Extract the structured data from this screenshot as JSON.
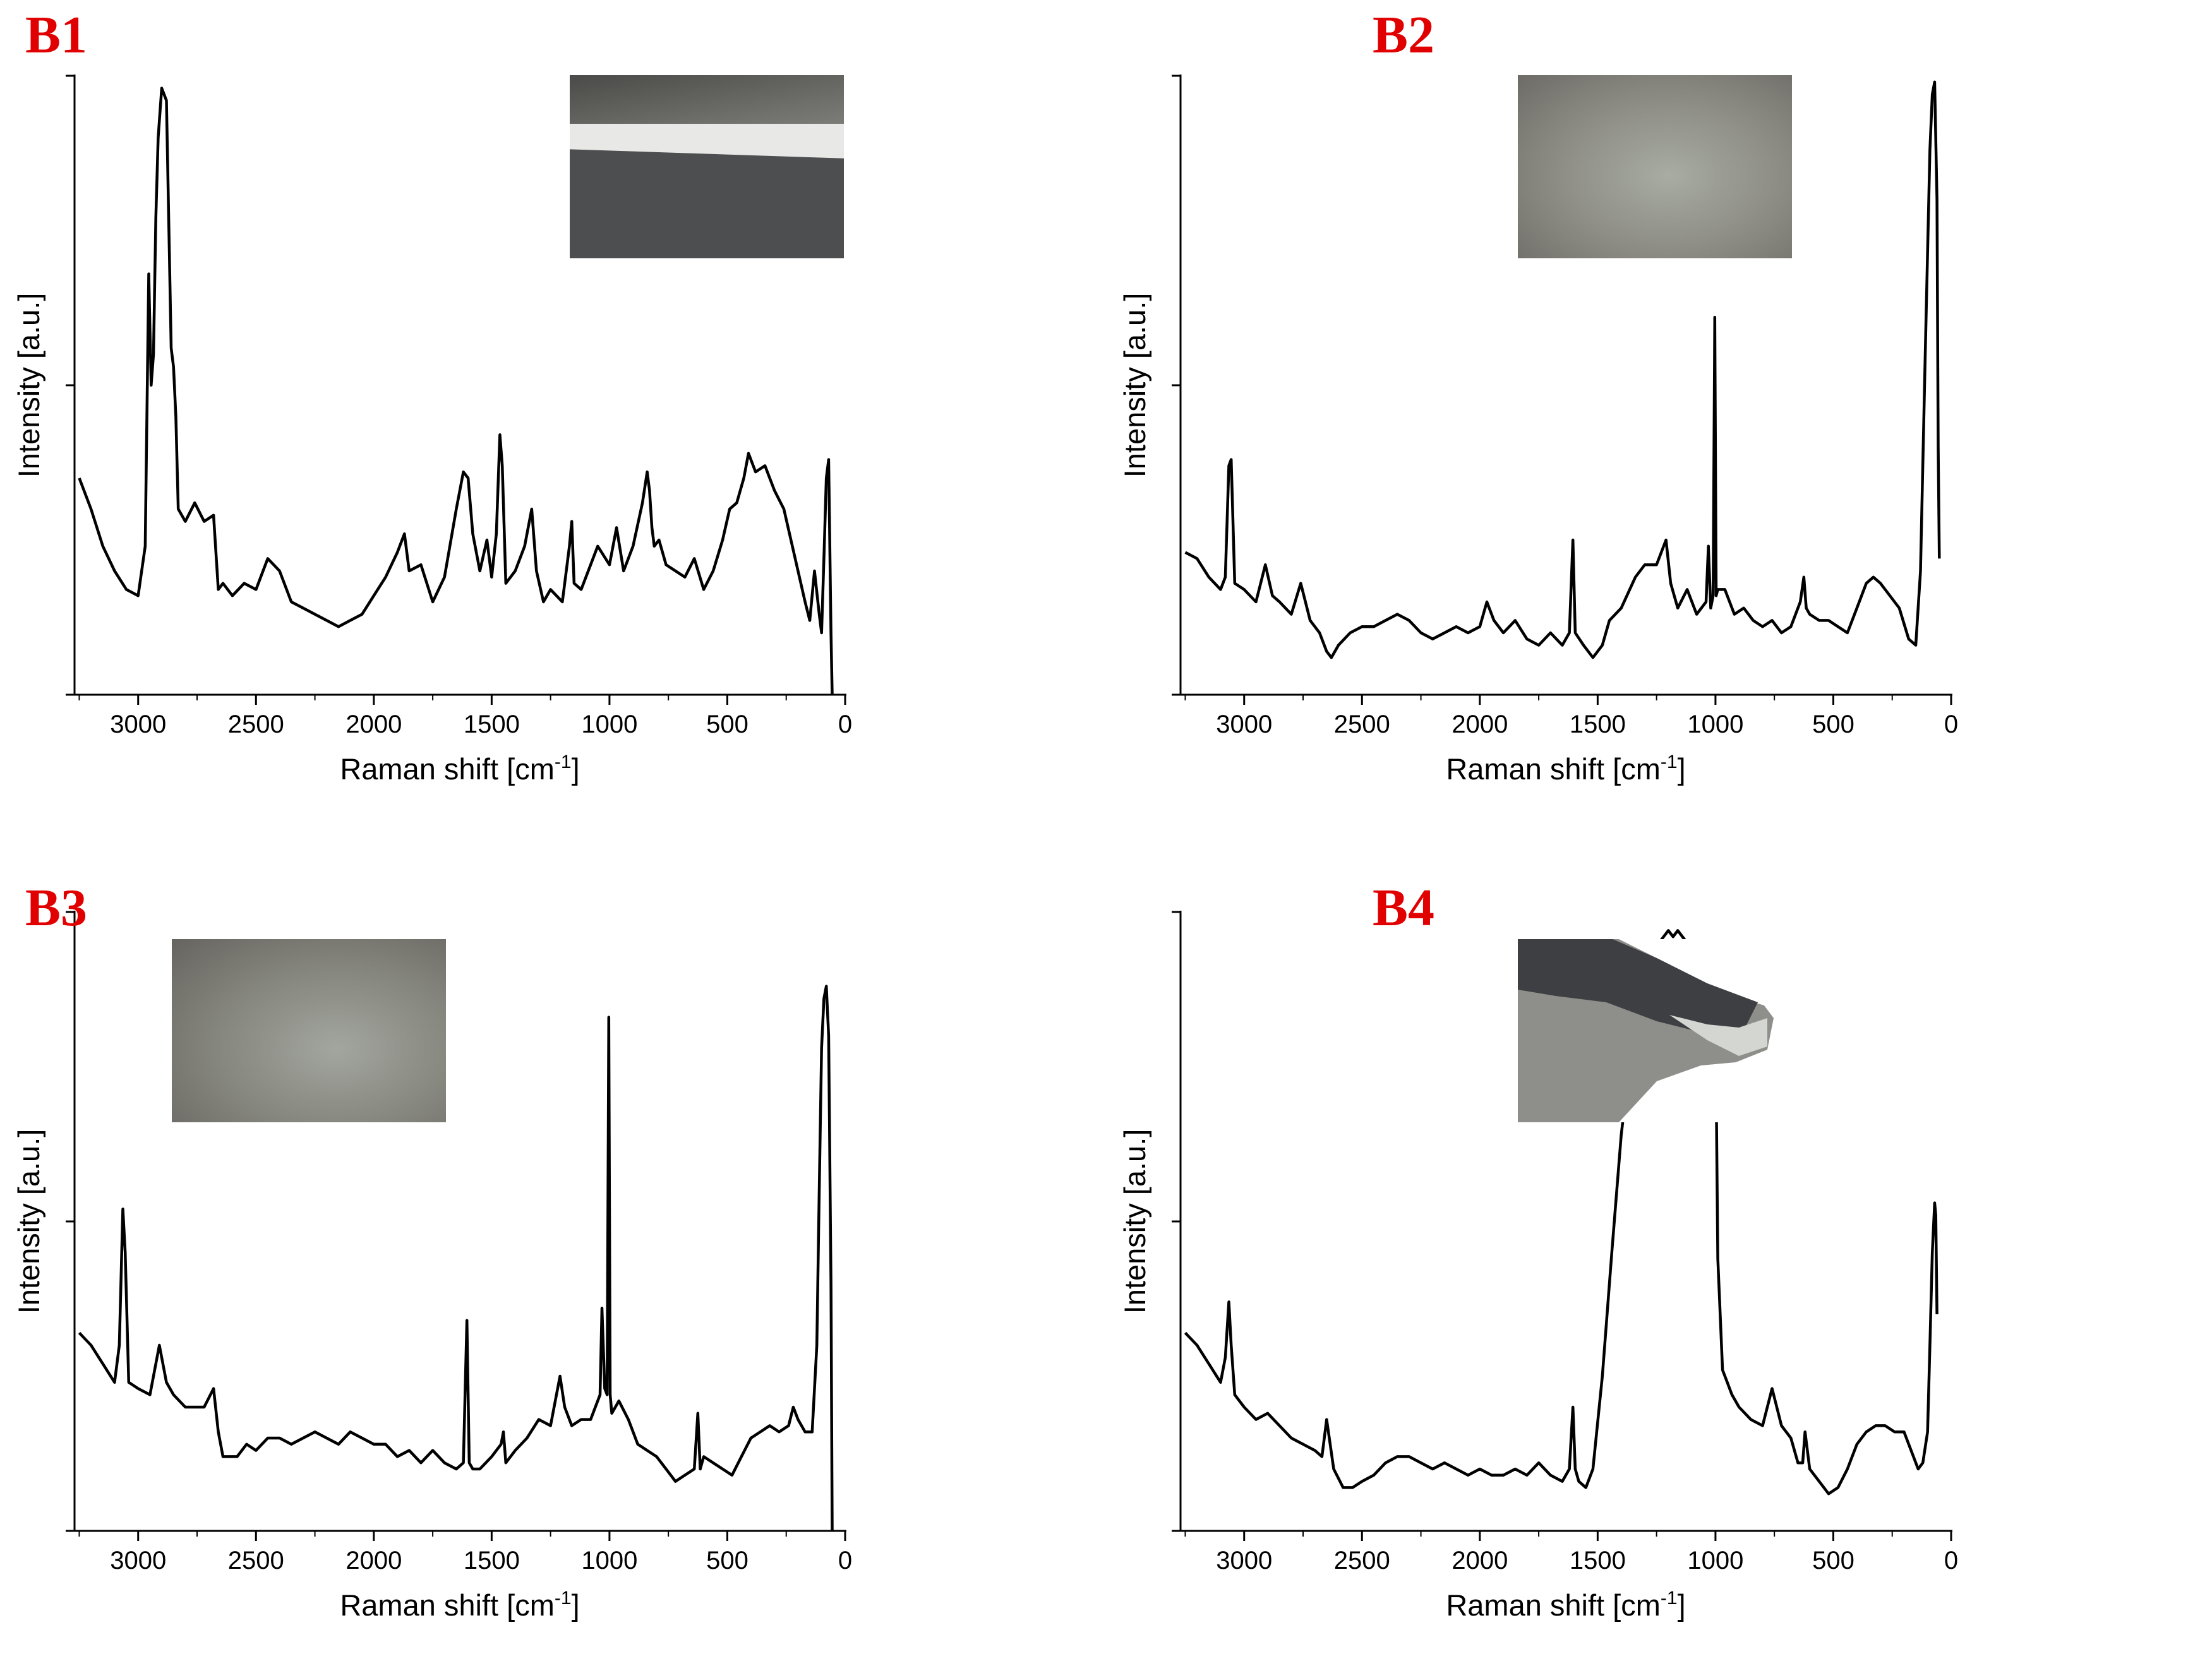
{
  "colors": {
    "label": "#e00000",
    "line": "#000000"
  },
  "chart_data": [
    {
      "id": "b1",
      "panel_label": "B1",
      "type": "line",
      "xlabel": "Raman shift [cm-1]",
      "xlabel_main": "Raman shift [cm",
      "xlabel_sup": "-1",
      "xlabel_end": "]",
      "ylabel": "Intensity [a.u.]",
      "xlim": [
        3270,
        0
      ],
      "ylim": [
        0,
        100
      ],
      "x_reversed": true,
      "x_ticks": [
        3000,
        2500,
        2000,
        1500,
        1000,
        500,
        0
      ],
      "x_tick_labels": [
        "3000",
        "2500",
        "2000",
        "1500",
        "1000",
        "500",
        "0"
      ],
      "y_ticks": [
        0,
        50,
        100
      ],
      "inset": "photo",
      "series": [
        {
          "x": [
            3250,
            3200,
            3150,
            3100,
            3050,
            3000,
            2970,
            2955,
            2945,
            2935,
            2925,
            2915,
            2900,
            2880,
            2860,
            2850,
            2840,
            2830,
            2800,
            2760,
            2720,
            2680,
            2660,
            2640,
            2600,
            2550,
            2500,
            2450,
            2400,
            2350,
            2300,
            2250,
            2200,
            2150,
            2100,
            2050,
            2000,
            1950,
            1900,
            1870,
            1850,
            1800,
            1750,
            1700,
            1650,
            1620,
            1600,
            1580,
            1550,
            1520,
            1500,
            1480,
            1465,
            1455,
            1440,
            1400,
            1360,
            1330,
            1310,
            1280,
            1250,
            1200,
            1170,
            1160,
            1150,
            1120,
            1080,
            1050,
            1000,
            970,
            940,
            900,
            860,
            840,
            830,
            820,
            810,
            790,
            760,
            720,
            680,
            640,
            600,
            560,
            520,
            490,
            460,
            430,
            410,
            380,
            340,
            300,
            260,
            230,
            200,
            170,
            150,
            130,
            110,
            100,
            90,
            80,
            70,
            60,
            55
          ],
          "y": [
            35,
            30,
            24,
            20,
            17,
            16,
            24,
            68,
            50,
            55,
            77,
            90,
            98,
            96,
            56,
            53,
            45,
            30,
            28,
            31,
            28,
            29,
            17,
            18,
            16,
            18,
            17,
            22,
            20,
            15,
            14,
            13,
            12,
            11,
            12,
            13,
            16,
            19,
            23,
            26,
            20,
            21,
            15,
            19,
            30,
            36,
            35,
            26,
            20,
            25,
            19,
            26,
            42,
            37,
            18,
            20,
            24,
            30,
            20,
            15,
            17,
            15,
            24,
            28,
            18,
            17,
            21,
            24,
            21,
            27,
            20,
            24,
            31,
            36,
            33,
            27,
            24,
            25,
            21,
            20,
            19,
            22,
            17,
            20,
            25,
            30,
            31,
            35,
            39,
            36,
            37,
            33,
            30,
            25,
            20,
            15,
            12,
            20,
            13,
            10,
            22,
            35,
            38,
            10,
            0
          ]
        }
      ]
    },
    {
      "id": "b2",
      "panel_label": "B2",
      "type": "line",
      "xlabel": "Raman shift [cm-1]",
      "xlabel_main": "Raman shift [cm",
      "xlabel_sup": "-1",
      "xlabel_end": "]",
      "ylabel": "Intensity [a.u.]",
      "xlim": [
        3270,
        0
      ],
      "ylim": [
        0,
        100
      ],
      "x_reversed": true,
      "x_ticks": [
        3000,
        2500,
        2000,
        1500,
        1000,
        500,
        0
      ],
      "x_tick_labels": [
        "3000",
        "2500",
        "2000",
        "1500",
        "1000",
        "500",
        "0"
      ],
      "y_ticks": [
        0,
        50,
        100
      ],
      "inset": "photo",
      "series": [
        {
          "x": [
            3250,
            3200,
            3150,
            3100,
            3080,
            3065,
            3055,
            3040,
            3000,
            2950,
            2910,
            2880,
            2850,
            2800,
            2760,
            2720,
            2680,
            2650,
            2630,
            2600,
            2550,
            2500,
            2450,
            2400,
            2350,
            2300,
            2250,
            2200,
            2150,
            2100,
            2050,
            2000,
            1970,
            1940,
            1900,
            1850,
            1800,
            1750,
            1700,
            1650,
            1620,
            1605,
            1595,
            1560,
            1520,
            1480,
            1450,
            1400,
            1340,
            1300,
            1250,
            1210,
            1190,
            1160,
            1120,
            1080,
            1040,
            1030,
            1020,
            1010,
            1003,
            997,
            990,
            960,
            920,
            880,
            840,
            800,
            760,
            720,
            680,
            640,
            625,
            615,
            600,
            560,
            520,
            480,
            440,
            400,
            360,
            330,
            300,
            260,
            220,
            180,
            150,
            130,
            110,
            90,
            80,
            70,
            60,
            55,
            50
          ],
          "y": [
            23,
            22,
            19,
            17,
            19,
            37,
            38,
            18,
            17,
            15,
            21,
            16,
            15,
            13,
            18,
            12,
            10,
            7,
            6,
            8,
            10,
            11,
            11,
            12,
            13,
            12,
            10,
            9,
            10,
            11,
            10,
            11,
            15,
            12,
            10,
            12,
            9,
            8,
            10,
            8,
            10,
            25,
            10,
            8,
            6,
            8,
            12,
            14,
            19,
            21,
            21,
            25,
            18,
            14,
            17,
            13,
            15,
            24,
            14,
            16,
            61,
            16,
            17,
            17,
            13,
            14,
            12,
            11,
            12,
            10,
            11,
            15,
            19,
            14,
            13,
            12,
            12,
            11,
            10,
            14,
            18,
            19,
            18,
            16,
            14,
            9,
            8,
            20,
            55,
            88,
            97,
            99,
            80,
            40,
            22
          ]
        }
      ]
    },
    {
      "id": "b3",
      "panel_label": "B3",
      "type": "line",
      "xlabel": "Raman shift [cm-1]",
      "xlabel_main": "Raman shift [cm",
      "xlabel_sup": "-1",
      "xlabel_end": "]",
      "ylabel": "Intensity [a.u.]",
      "xlim": [
        3270,
        0
      ],
      "ylim": [
        0,
        100
      ],
      "x_reversed": true,
      "x_ticks": [
        3000,
        2500,
        2000,
        1500,
        1000,
        500,
        0
      ],
      "x_tick_labels": [
        "3000",
        "2500",
        "2000",
        "1500",
        "1000",
        "500",
        "0"
      ],
      "y_ticks": [
        0,
        50,
        100
      ],
      "inset": "photo",
      "series": [
        {
          "x": [
            3250,
            3200,
            3150,
            3100,
            3080,
            3065,
            3055,
            3040,
            3000,
            2950,
            2910,
            2880,
            2850,
            2800,
            2760,
            2720,
            2680,
            2660,
            2640,
            2620,
            2580,
            2540,
            2500,
            2450,
            2400,
            2350,
            2300,
            2250,
            2200,
            2150,
            2100,
            2050,
            2000,
            1950,
            1900,
            1850,
            1800,
            1750,
            1700,
            1650,
            1620,
            1605,
            1595,
            1580,
            1550,
            1500,
            1460,
            1450,
            1440,
            1400,
            1350,
            1300,
            1250,
            1210,
            1190,
            1160,
            1120,
            1080,
            1040,
            1032,
            1020,
            1010,
            1003,
            997,
            990,
            960,
            920,
            880,
            840,
            800,
            760,
            720,
            680,
            640,
            625,
            615,
            600,
            560,
            520,
            480,
            440,
            400,
            360,
            320,
            280,
            240,
            220,
            200,
            170,
            140,
            120,
            110,
            100,
            90,
            80,
            70,
            60,
            55
          ],
          "y": [
            32,
            30,
            27,
            24,
            30,
            52,
            45,
            24,
            23,
            22,
            30,
            24,
            22,
            20,
            20,
            20,
            23,
            16,
            12,
            12,
            12,
            14,
            13,
            15,
            15,
            14,
            15,
            16,
            15,
            14,
            16,
            15,
            14,
            14,
            12,
            13,
            11,
            13,
            11,
            10,
            11,
            34,
            11,
            10,
            10,
            12,
            14,
            16,
            11,
            13,
            15,
            18,
            17,
            25,
            20,
            17,
            18,
            18,
            22,
            36,
            23,
            22,
            83,
            22,
            19,
            21,
            18,
            14,
            13,
            12,
            10,
            8,
            9,
            10,
            19,
            10,
            12,
            11,
            10,
            9,
            12,
            15,
            16,
            17,
            16,
            17,
            20,
            18,
            16,
            16,
            30,
            55,
            78,
            86,
            88,
            80,
            40,
            0
          ]
        }
      ]
    },
    {
      "id": "b4",
      "panel_label": "B4",
      "type": "line",
      "xlabel": "Raman shift [cm-1]",
      "xlabel_main": "Raman shift [cm",
      "xlabel_sup": "-1",
      "xlabel_end": "]",
      "ylabel": "Intensity [a.u.]",
      "xlim": [
        3270,
        0
      ],
      "ylim": [
        0,
        100
      ],
      "x_reversed": true,
      "x_ticks": [
        3000,
        2500,
        2000,
        1500,
        1000,
        500,
        0
      ],
      "x_tick_labels": [
        "3000",
        "2500",
        "2000",
        "1500",
        "1000",
        "500",
        "0"
      ],
      "y_ticks": [
        0,
        50,
        100
      ],
      "inset": "photo",
      "series": [
        {
          "x": [
            3250,
            3200,
            3150,
            3100,
            3080,
            3065,
            3055,
            3040,
            3000,
            2950,
            2900,
            2850,
            2800,
            2750,
            2700,
            2670,
            2650,
            2620,
            2580,
            2540,
            2500,
            2450,
            2400,
            2350,
            2300,
            2250,
            2200,
            2150,
            2100,
            2050,
            2000,
            1950,
            1900,
            1850,
            1800,
            1750,
            1700,
            1650,
            1620,
            1605,
            1595,
            1580,
            1550,
            1520,
            1480,
            1440,
            1400,
            1350,
            1300,
            1260,
            1220,
            1200,
            1180,
            1160,
            1140,
            1120,
            1100,
            1080,
            1060,
            1040,
            1030,
            1020,
            1010,
            1003,
            997,
            990,
            970,
            950,
            930,
            900,
            850,
            800,
            760,
            720,
            680,
            650,
            630,
            620,
            600,
            560,
            520,
            480,
            440,
            400,
            360,
            320,
            280,
            240,
            200,
            170,
            140,
            120,
            100,
            90,
            80,
            70,
            65,
            60
          ],
          "y": [
            32,
            30,
            27,
            24,
            28,
            37,
            30,
            22,
            20,
            18,
            19,
            17,
            15,
            14,
            13,
            12,
            18,
            10,
            7,
            7,
            8,
            9,
            11,
            12,
            12,
            11,
            10,
            11,
            10,
            9,
            10,
            9,
            9,
            10,
            9,
            11,
            9,
            8,
            10,
            20,
            10,
            8,
            7,
            10,
            25,
            45,
            64,
            80,
            90,
            94,
            96,
            97,
            96,
            97,
            96,
            95,
            93,
            88,
            83,
            80,
            78,
            85,
            70,
            88,
            72,
            44,
            26,
            24,
            22,
            20,
            18,
            17,
            23,
            17,
            15,
            11,
            11,
            16,
            10,
            8,
            6,
            7,
            10,
            14,
            16,
            17,
            17,
            16,
            16,
            13,
            10,
            11,
            16,
            30,
            45,
            53,
            51,
            35
          ]
        }
      ]
    }
  ]
}
